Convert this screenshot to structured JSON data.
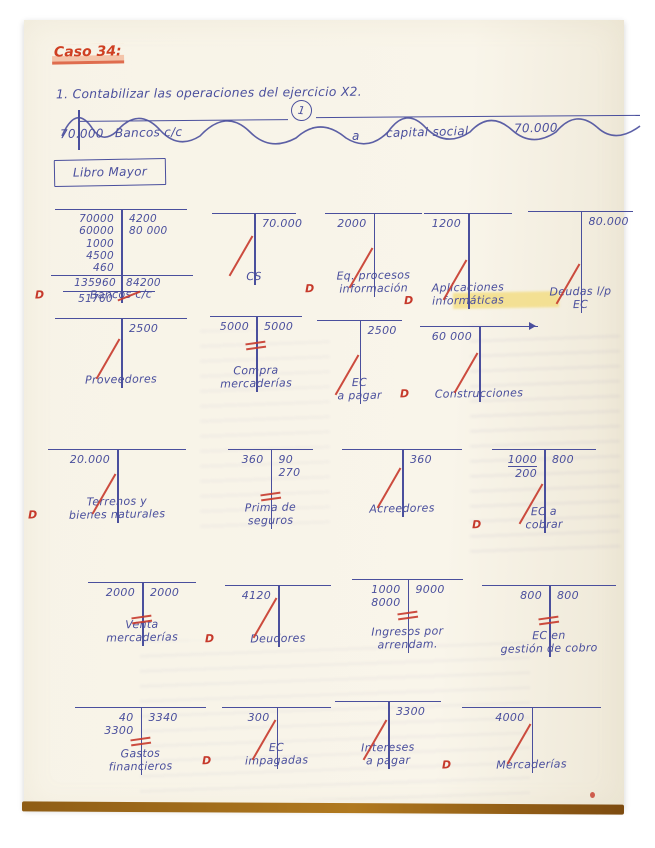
{
  "page": {
    "case_title": "Caso 34:",
    "instruction": "1. Contabilizar las operaciones del ejercicio X2.",
    "ledger_title": "Libro Mayor",
    "d_label": "D",
    "journal_entry": {
      "number": "1",
      "debit_amount": "70.000",
      "debit_account": "Bancos c/c",
      "connector": "a",
      "credit_account": "capital social",
      "credit_amount": "70.000"
    }
  },
  "colors": {
    "ink": "#4a4f9d",
    "red": "#c6392b",
    "highlight": "#f3e3a1",
    "paper": "#f8f4e8"
  },
  "accounts": [
    {
      "id": "bancos",
      "title": [
        "Bancos c/c"
      ],
      "d": true,
      "debits": [
        "70000",
        "60000",
        "1000",
        "4500",
        "460"
      ],
      "credits": [
        "4200",
        "80 000"
      ],
      "totals": {
        "debit": "135960",
        "credit": "84200",
        "balance": "51760"
      },
      "mark": "dash"
    },
    {
      "id": "cs",
      "title": [
        "CS"
      ],
      "d": false,
      "debits": [],
      "credits": [
        "70.000"
      ],
      "mark": "slash"
    },
    {
      "id": "eq",
      "title": [
        "Eq. procesos",
        "información"
      ],
      "d": true,
      "debits": [
        "2000"
      ],
      "credits": [],
      "mark": "slash"
    },
    {
      "id": "apl",
      "title": [
        "Aplicaciones",
        "informáticas"
      ],
      "d": true,
      "debits": [
        "1200"
      ],
      "credits": [],
      "mark": "slash"
    },
    {
      "id": "deudas",
      "title": [
        "Deudas l/p",
        "EC"
      ],
      "d": false,
      "debits": [],
      "credits": [
        "80.000"
      ],
      "mark": "slash"
    },
    {
      "id": "prov",
      "title": [
        "Proveedores"
      ],
      "d": false,
      "debits": [],
      "credits": [
        "2500"
      ],
      "mark": "slash"
    },
    {
      "id": "compra",
      "title": [
        "Compra",
        "mercaderías"
      ],
      "d": false,
      "debits": [
        "5000"
      ],
      "credits": [
        "5000"
      ],
      "mark": "equals"
    },
    {
      "id": "ecpagar",
      "title": [
        "EC",
        "a pagar"
      ],
      "d": false,
      "debits": [],
      "credits": [
        "2500"
      ],
      "mark": "slash"
    },
    {
      "id": "constr",
      "title": [
        "Construcciones"
      ],
      "d": true,
      "debits": [
        "60 000"
      ],
      "credits": [],
      "mark": "slash",
      "arrow": true
    },
    {
      "id": "terrenos",
      "title": [
        "Terrenos y",
        "bienes naturales"
      ],
      "d": true,
      "debits": [
        "20.000"
      ],
      "credits": [],
      "mark": "slash"
    },
    {
      "id": "prima",
      "title": [
        "Prima de",
        "seguros"
      ],
      "d": false,
      "debits": [
        "360"
      ],
      "credits": [
        "90",
        "270"
      ],
      "mark": "equals"
    },
    {
      "id": "acreedores",
      "title": [
        "Acreedores"
      ],
      "d": false,
      "debits": [],
      "credits": [
        "360"
      ],
      "mark": "slash"
    },
    {
      "id": "eccobrar",
      "title": [
        "EC a",
        "cobrar"
      ],
      "d": true,
      "debits": [
        "1000"
      ],
      "debit_balance": "200",
      "credits": [
        "800"
      ],
      "mark": "slash"
    },
    {
      "id": "venta",
      "title": [
        "Venta",
        "mercaderías"
      ],
      "d": false,
      "debits": [
        "2000"
      ],
      "credits": [
        "2000"
      ],
      "mark": "equals"
    },
    {
      "id": "deudores",
      "title": [
        "Deudores"
      ],
      "d": true,
      "debits": [
        "4120"
      ],
      "credits": [],
      "mark": "slash"
    },
    {
      "id": "ingresos",
      "title": [
        "Ingresos por",
        "arrendam."
      ],
      "d": false,
      "debits": [
        "1000",
        "8000"
      ],
      "credits": [
        "9000"
      ],
      "mark": "equals"
    },
    {
      "id": "ecgestion",
      "title": [
        "EC en",
        "gestión de cobro"
      ],
      "d": false,
      "debits": [
        "800"
      ],
      "credits": [
        "800"
      ],
      "mark": "equals"
    },
    {
      "id": "gastos",
      "title": [
        "Gastos",
        "financieros"
      ],
      "d": false,
      "debits": [
        "40",
        "3300"
      ],
      "credits": [
        "3340"
      ],
      "mark": "equals"
    },
    {
      "id": "ecimpag",
      "title": [
        "EC",
        "impagadas"
      ],
      "d": true,
      "debits": [
        "300"
      ],
      "credits": [],
      "mark": "slash"
    },
    {
      "id": "intereses",
      "title": [
        "Intereses",
        "a pagar"
      ],
      "d": false,
      "debits": [],
      "credits": [
        "3300"
      ],
      "mark": "slash"
    },
    {
      "id": "mercaderias",
      "title": [
        "Mercaderías"
      ],
      "d": true,
      "debits": [
        "4000"
      ],
      "credits": [],
      "mark": "slash"
    }
  ]
}
